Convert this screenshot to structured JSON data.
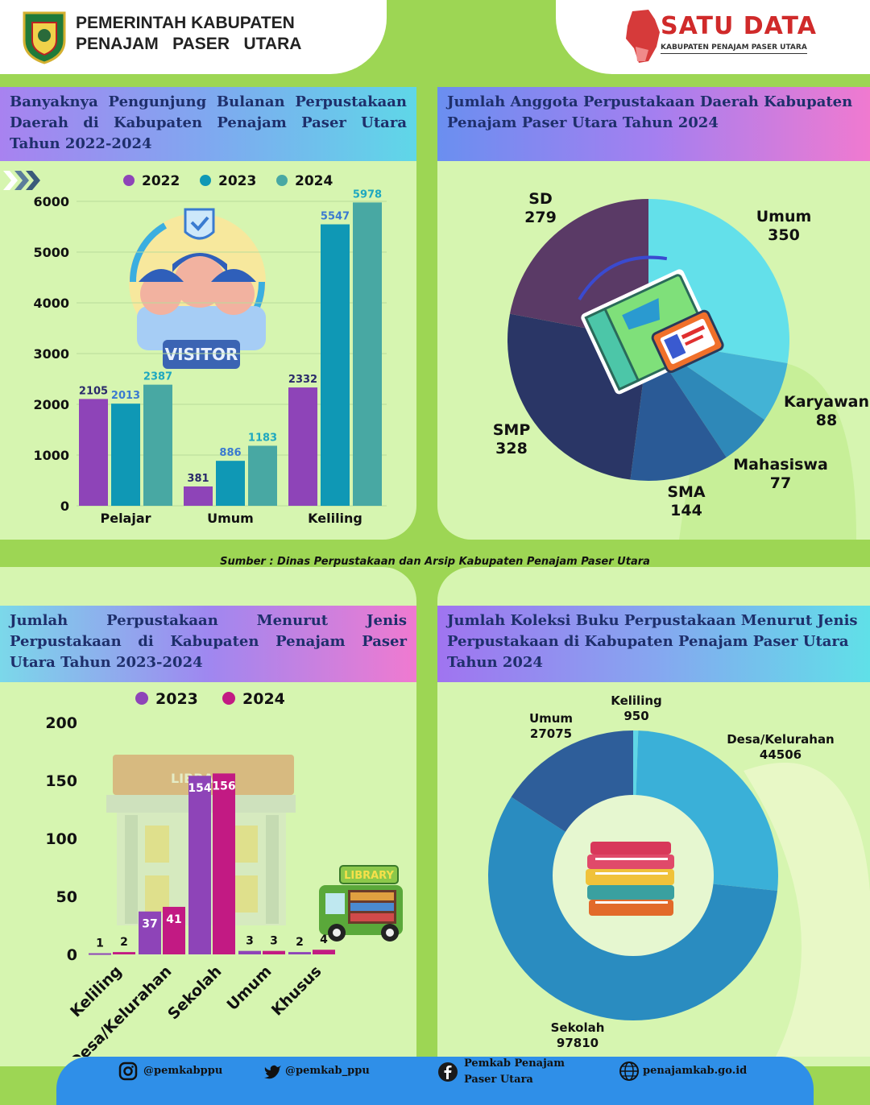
{
  "header": {
    "gov_line1": "PEMERINTAH KABUPATEN",
    "gov_line2": "PENAJAM   PASER   UTARA",
    "brand": "SATU DATA",
    "brand_sub": "KABUPATEN PENAJAM PASER UTARA"
  },
  "source": "Sumber : Dinas Perpustakaan dan Arsip Kabupaten Penajam Paser Utara",
  "footer": {
    "instagram": "@pemkabppu",
    "twitter": "@pemkab_ppu",
    "facebook_line1": "Pemkab Penajam",
    "facebook_line2": "Paser Utara",
    "website": "penajamkab.go.id"
  },
  "colors": {
    "c2022": "#8e44b8",
    "c2023": "#0f98b5",
    "c2024": "#48a8a3",
    "lib2023": "#8e44b8",
    "lib2024": "#c21a83"
  },
  "illustration": {
    "visitor_badge": "VISITOR",
    "library_sign": "LIBRARY",
    "bus_sign": "LIBRARY"
  },
  "chart_data": [
    {
      "type": "bar",
      "title": "Banyaknya Pengunjung Bulanan Perpustakaan Daerah di Kabupaten Penajam Paser Utara Tahun 2022-2024",
      "categories": [
        "Pelajar",
        "Umum",
        "Keliling"
      ],
      "series": [
        {
          "name": "2022",
          "values": [
            2105,
            381,
            2332
          ]
        },
        {
          "name": "2023",
          "values": [
            2013,
            886,
            5547
          ]
        },
        {
          "name": "2024",
          "values": [
            2387,
            1183,
            5978
          ]
        }
      ],
      "yticks": [
        0,
        1000,
        2000,
        3000,
        4000,
        5000,
        6000
      ],
      "ylim": [
        0,
        6000
      ],
      "legend": "top"
    },
    {
      "type": "pie",
      "title": "Jumlah Anggota Perpustakaan Daerah Kabupaten Penajam Paser Utara Tahun 2024",
      "slices": [
        {
          "label": "Umum",
          "value": 350,
          "color": "#63e0ea"
        },
        {
          "label": "Karyawan",
          "value": 88,
          "color": "#43b3d5"
        },
        {
          "label": "Mahasiswa",
          "value": 77,
          "color": "#2e88b8"
        },
        {
          "label": "SMA",
          "value": 144,
          "color": "#2a5a96"
        },
        {
          "label": "SMP",
          "value": 328,
          "color": "#2a3666"
        },
        {
          "label": "SD",
          "value": 279,
          "color": "#5a3a66"
        }
      ]
    },
    {
      "type": "bar",
      "title": "Jumlah Perpustakaan Menurut Jenis Perpustakaan di Kabupaten Penajam Paser Utara Tahun 2023-2024",
      "categories": [
        "Keliling",
        "Desa/Kelurahan",
        "Sekolah",
        "Umum",
        "Khusus"
      ],
      "series": [
        {
          "name": "2023",
          "values": [
            1,
            37,
            154,
            3,
            2
          ]
        },
        {
          "name": "2024",
          "values": [
            2,
            41,
            156,
            3,
            4
          ]
        }
      ],
      "yticks": [
        0,
        50,
        100,
        150,
        200
      ],
      "ylim": [
        0,
        200
      ],
      "legend": "top"
    },
    {
      "type": "pie",
      "title": "Jumlah Koleksi Buku Perpustakaan Menurut Jenis Perpustakaan di Kabupaten Penajam Paser Utara Tahun 2024",
      "slices": [
        {
          "label": "Keliling",
          "value": 950,
          "color": "#5fd6e6"
        },
        {
          "label": "Desa/Kelurahan",
          "value": 44506,
          "color": "#3ab0d8"
        },
        {
          "label": "Sekolah",
          "value": 97810,
          "color": "#2a8cc0"
        },
        {
          "label": "Umum",
          "value": 27075,
          "color": "#2e5e9a"
        }
      ]
    }
  ]
}
